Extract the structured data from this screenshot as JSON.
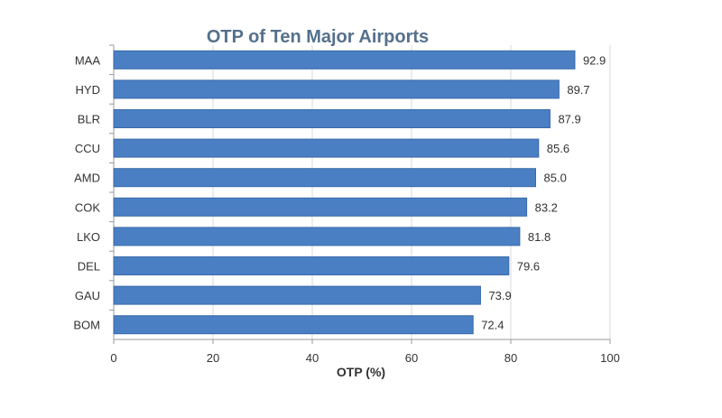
{
  "chart_data": {
    "type": "bar",
    "orientation": "horizontal",
    "title": "OTP of Ten Major Airports",
    "xlabel": "OTP (%)",
    "ylabel": "",
    "categories": [
      "MAA",
      "HYD",
      "BLR",
      "CCU",
      "AMD",
      "COK",
      "LKO",
      "DEL",
      "GAU",
      "BOM"
    ],
    "values": [
      92.9,
      89.7,
      87.9,
      85.6,
      85.0,
      83.2,
      81.8,
      79.6,
      73.9,
      72.4
    ],
    "value_labels": [
      "92.9",
      "89.7",
      "87.9",
      "85.6",
      "85.0",
      "83.2",
      "81.8",
      "79.6",
      "73.9",
      "72.4"
    ],
    "xlim": [
      0,
      100
    ],
    "xticks": [
      "0",
      "20",
      "40",
      "60",
      "80",
      "100"
    ],
    "grid": "vertical",
    "legend": "none",
    "bar_color": "#4a7fc4"
  }
}
